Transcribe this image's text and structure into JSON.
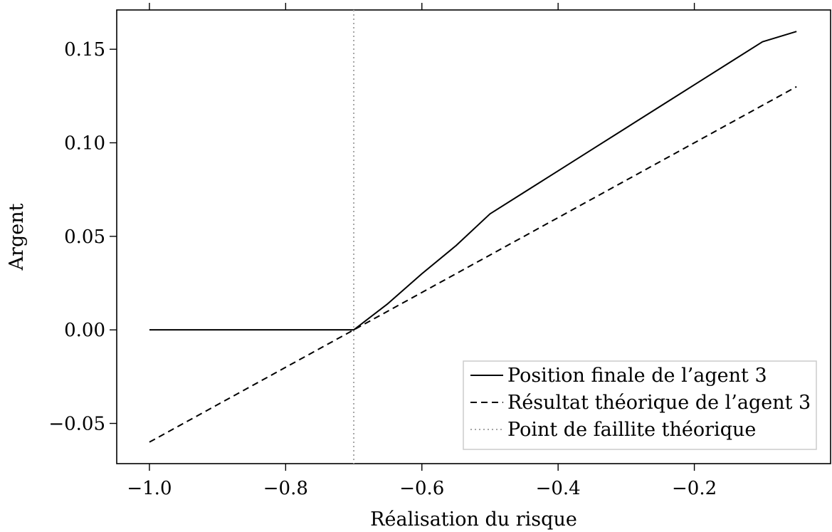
{
  "chart_data": {
    "type": "line",
    "title": "",
    "xlabel": "Réalisation du risque",
    "ylabel": "Argent",
    "xlim": [
      -1.048,
      0.0
    ],
    "ylim": [
      -0.0715,
      0.171
    ],
    "x_ticks": [
      -1.0,
      -0.8,
      -0.6,
      -0.4,
      -0.2
    ],
    "x_tick_labels": [
      "−1.0",
      "−0.8",
      "−0.6",
      "−0.4",
      "−0.2"
    ],
    "y_ticks": [
      -0.05,
      0.0,
      0.05,
      0.1,
      0.15
    ],
    "y_tick_labels": [
      "−0.05",
      "0.00",
      "0.05",
      "0.10",
      "0.15"
    ],
    "grid": false,
    "legend_position": "bottom-right",
    "series": [
      {
        "name": "Position finale de l’agent 3",
        "style": "solid",
        "color": "#000000",
        "x": [
          -1.0,
          -0.9,
          -0.8,
          -0.75,
          -0.7,
          -0.65,
          -0.6,
          -0.55,
          -0.5,
          -0.45,
          -0.4,
          -0.35,
          -0.3,
          -0.25,
          -0.2,
          -0.15,
          -0.1,
          -0.05
        ],
        "y": [
          0.0,
          0.0,
          0.0,
          0.0,
          0.0,
          0.014,
          0.03,
          0.045,
          0.062,
          0.0735,
          0.085,
          0.0965,
          0.108,
          0.1195,
          0.131,
          0.1425,
          0.154,
          0.1595
        ]
      },
      {
        "name": "Résultat théorique de l’agent 3",
        "style": "dashed",
        "color": "#000000",
        "x": [
          -1.0,
          -0.05
        ],
        "y": [
          -0.06,
          0.13
        ]
      }
    ],
    "vlines": [
      {
        "name": "Point de faillite théorique",
        "x": -0.7,
        "style": "dotted",
        "color": "#a6a6a6"
      }
    ]
  }
}
